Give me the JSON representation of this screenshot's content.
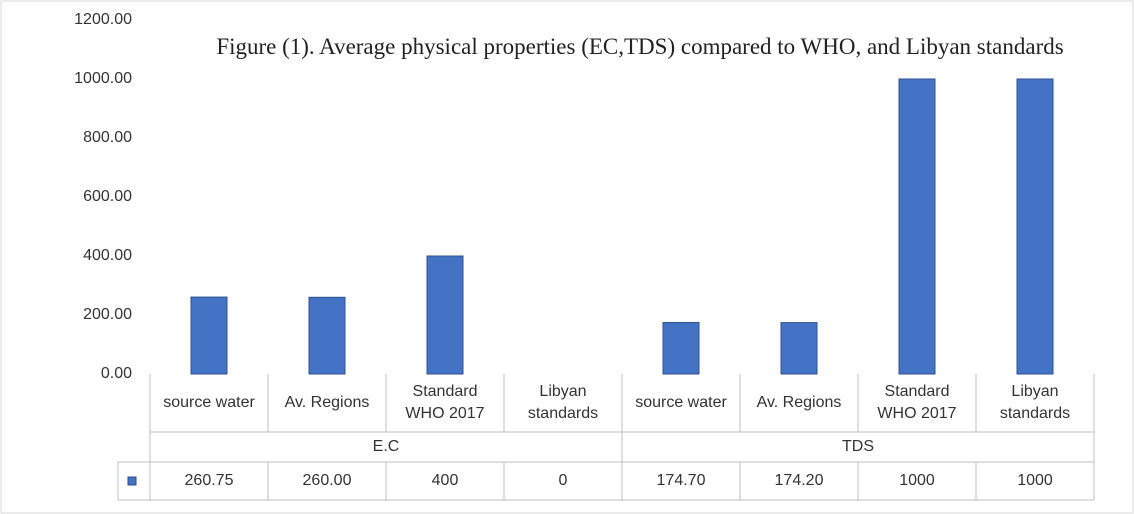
{
  "chart_data": {
    "type": "bar",
    "title": "Figure (1). Average physical properties (EC,TDS) compared to WHO, and Libyan standards",
    "categories": [
      "source water",
      "Av. Regions",
      "Standard WHO 2017",
      "Libyan standards",
      "source water",
      "Av. Regions",
      "Standard WHO 2017",
      "Libyan standards"
    ],
    "groups": [
      {
        "name": "E.C",
        "count": 4
      },
      {
        "name": "TDS",
        "count": 4
      }
    ],
    "values": [
      260.75,
      260,
      400,
      0,
      174.7,
      174.2,
      1000,
      1000
    ],
    "value_labels": [
      "260.75",
      "260.00",
      "400",
      "0",
      "174.70",
      "174.20",
      "1000",
      "1000"
    ],
    "color": "#4472c4",
    "ylim": [
      0,
      1200
    ],
    "yticks": [
      {
        "value": 0,
        "label": "0.00"
      },
      {
        "value": 200,
        "label": "200.00"
      },
      {
        "value": 400,
        "label": "400.00"
      },
      {
        "value": 600,
        "label": "600.00"
      },
      {
        "value": 800,
        "label": "800.00"
      },
      {
        "value": 1000,
        "label": "1000.00"
      },
      {
        "value": 1200,
        "label": "1200.00"
      }
    ],
    "grid": false
  }
}
